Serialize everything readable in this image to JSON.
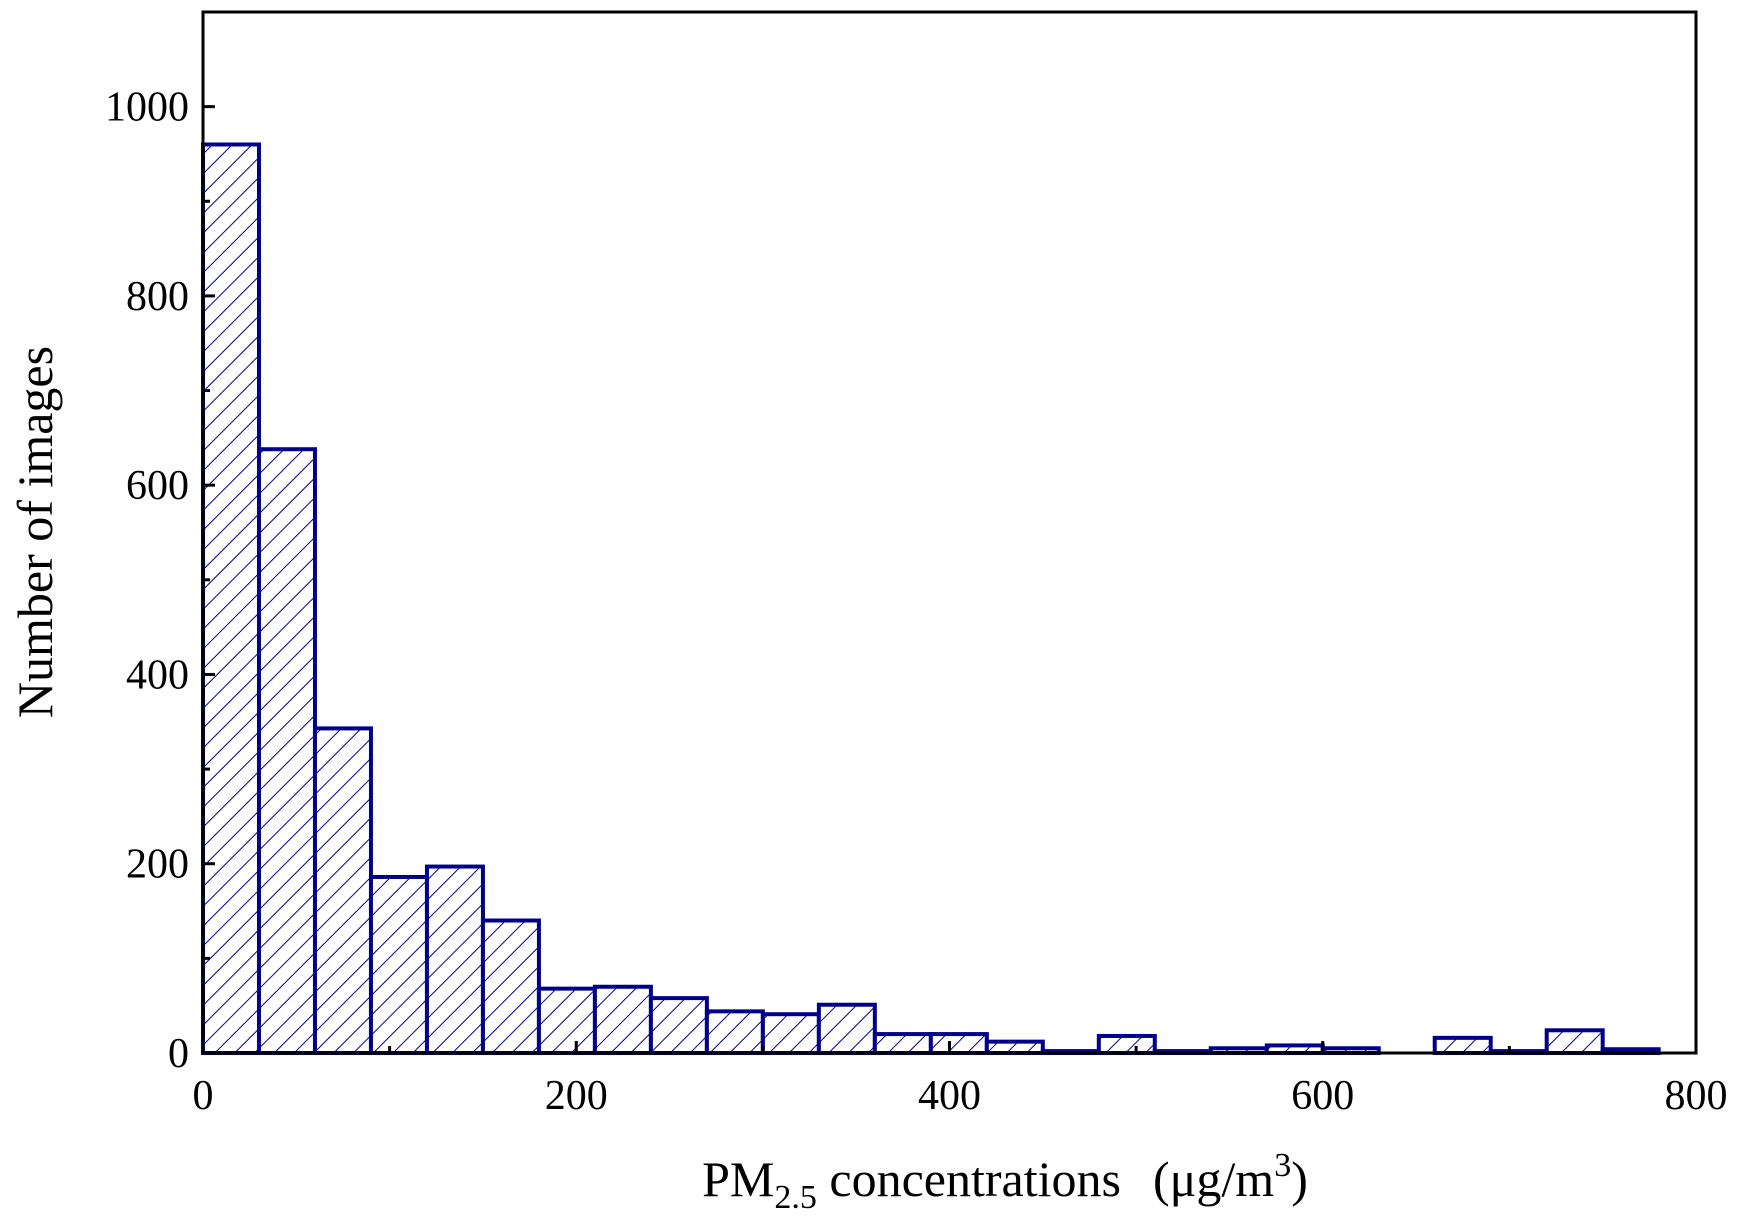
{
  "chart_data": {
    "type": "bar",
    "title": "",
    "xlabel": {
      "main": "PM",
      "subscript": "2.5",
      "rest": " concentrations",
      "unit_open": "(μg/m",
      "unit_sup": "3",
      "unit_close": ")"
    },
    "ylabel": "Number of images",
    "xlim": [
      0,
      800
    ],
    "ylim": [
      0,
      1100
    ],
    "x_ticks": [
      0,
      200,
      400,
      600,
      800
    ],
    "y_ticks": [
      0,
      200,
      400,
      600,
      800,
      1000
    ],
    "bin_width": 30,
    "bins": [
      {
        "start": 0,
        "value": 960
      },
      {
        "start": 30,
        "value": 638
      },
      {
        "start": 60,
        "value": 343
      },
      {
        "start": 90,
        "value": 186
      },
      {
        "start": 120,
        "value": 197
      },
      {
        "start": 150,
        "value": 140
      },
      {
        "start": 180,
        "value": 68
      },
      {
        "start": 210,
        "value": 70
      },
      {
        "start": 240,
        "value": 58
      },
      {
        "start": 270,
        "value": 44
      },
      {
        "start": 300,
        "value": 41
      },
      {
        "start": 330,
        "value": 51
      },
      {
        "start": 360,
        "value": 20
      },
      {
        "start": 390,
        "value": 20
      },
      {
        "start": 420,
        "value": 12
      },
      {
        "start": 450,
        "value": 2
      },
      {
        "start": 480,
        "value": 18
      },
      {
        "start": 510,
        "value": 2
      },
      {
        "start": 540,
        "value": 5
      },
      {
        "start": 570,
        "value": 8
      },
      {
        "start": 600,
        "value": 5
      },
      {
        "start": 630,
        "value": 0
      },
      {
        "start": 660,
        "value": 16
      },
      {
        "start": 690,
        "value": 2
      },
      {
        "start": 720,
        "value": 24
      },
      {
        "start": 750,
        "value": 4
      }
    ],
    "grid": false,
    "legend": "none",
    "colors": {
      "bar_edge": "#00008B",
      "hatch": "#00008B",
      "axis": "#000000"
    }
  }
}
